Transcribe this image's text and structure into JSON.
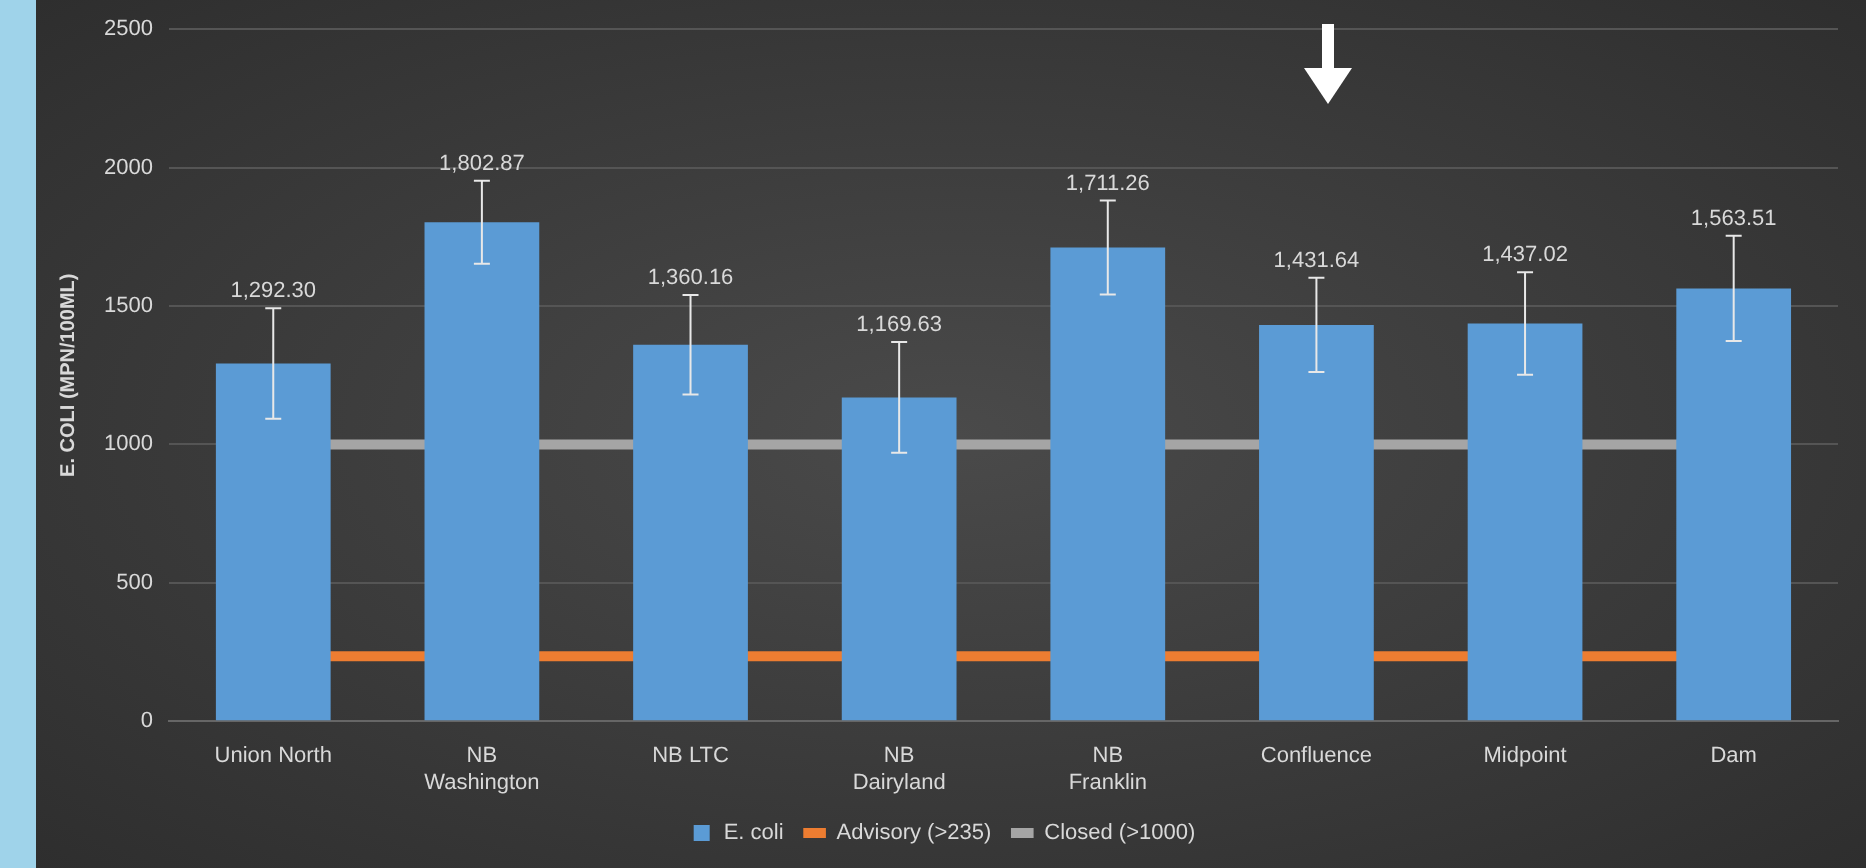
{
  "chart_data": {
    "type": "bar",
    "ylabel": "E. COLI (MPN/100ML)",
    "categories": [
      "Union North",
      "NB Washington",
      "NB LTC",
      "NB Dairyland",
      "NB Franklin",
      "Confluence",
      "Midpoint",
      "Dam"
    ],
    "series": [
      {
        "name": "E. coli",
        "color": "#5b9bd5",
        "values": [
          1292.3,
          1802.87,
          1360.16,
          1169.63,
          1711.26,
          1431.64,
          1437.02,
          1563.51
        ],
        "errors": [
          200,
          150,
          180,
          200,
          170,
          170,
          185,
          190
        ],
        "value_labels": [
          "1,292.30",
          "1,802.87",
          "1,360.16",
          "1,169.63",
          "1,711.26",
          "1,431.64",
          "1,437.02",
          "1,563.51"
        ]
      }
    ],
    "ref_lines": [
      {
        "axis": "y",
        "value": 235,
        "label": "Advisory (>235)",
        "color": "#ed7d31"
      },
      {
        "axis": "y",
        "value": 1000,
        "label": "Closed (>1000)",
        "color": "#a5a5a5"
      }
    ],
    "ylim": [
      0,
      2500
    ],
    "yticks": [
      0,
      500,
      1000,
      1500,
      2000,
      2500
    ],
    "grid": "y",
    "legend": "bottom"
  }
}
